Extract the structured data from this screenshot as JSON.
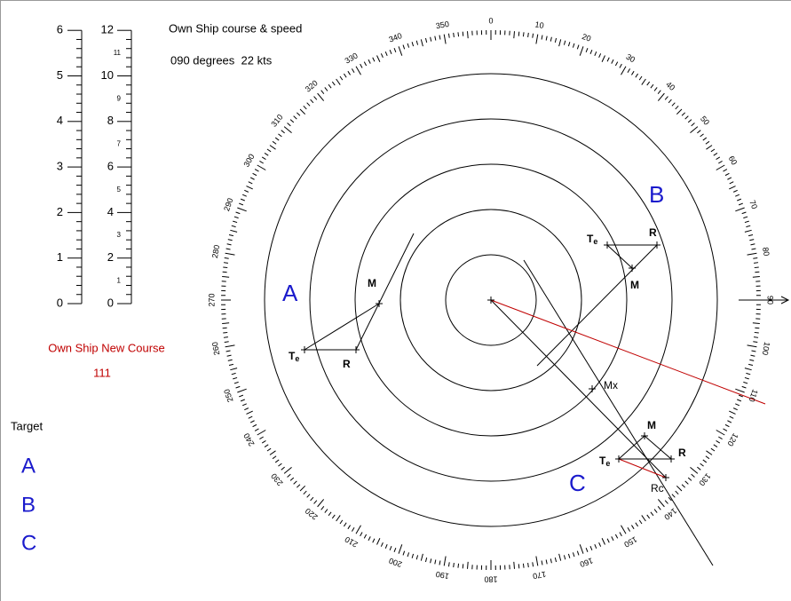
{
  "header": {
    "title": "Own Ship course & speed",
    "course_speed": "090 degrees  22 kts"
  },
  "scales": {
    "left": [
      "0",
      "1",
      "2",
      "3",
      "4",
      "5",
      "6"
    ],
    "right_major": [
      "0",
      "2",
      "4",
      "6",
      "8",
      "10",
      "12"
    ],
    "right_minor": [
      "1",
      "3",
      "5",
      "7",
      "9",
      "11"
    ]
  },
  "new_course": {
    "label": "Own Ship New Course",
    "value": "111"
  },
  "targets": {
    "title": "Target",
    "items": [
      "A",
      "B",
      "C"
    ]
  },
  "compass_labels": [
    "0",
    "10",
    "20",
    "30",
    "40",
    "50",
    "60",
    "70",
    "80",
    "90",
    "100",
    "110",
    "120",
    "130",
    "140",
    "150",
    "160",
    "170",
    "180",
    "190",
    "200",
    "210",
    "220",
    "230",
    "240",
    "250",
    "260",
    "270",
    "280",
    "290",
    "300",
    "310",
    "320",
    "330",
    "340",
    "350"
  ],
  "plot": {
    "names": [
      "A",
      "B",
      "C"
    ],
    "m": "M",
    "r": "R",
    "t": "T",
    "e": "e",
    "mx": "Mx",
    "rc": "Rc"
  }
}
